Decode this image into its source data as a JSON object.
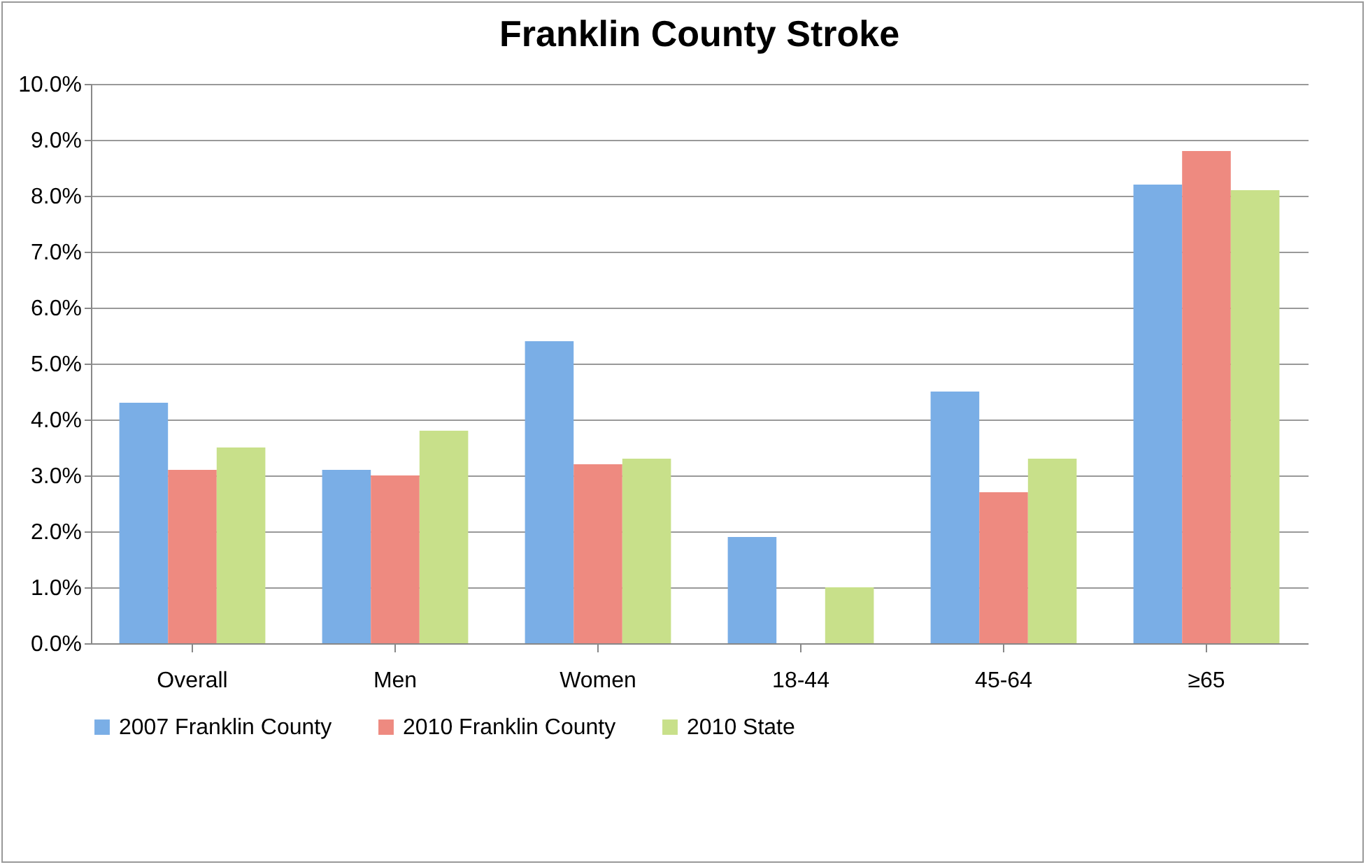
{
  "chart_data": {
    "type": "bar",
    "title": "Franklin County Stroke",
    "categories": [
      "Overall",
      "Men",
      "Women",
      "18-44",
      "45-64",
      "≥65"
    ],
    "series": [
      {
        "name": "2007 Franklin County",
        "color": "#7aaee6",
        "values": [
          4.3,
          3.1,
          5.4,
          1.9,
          4.5,
          8.2
        ]
      },
      {
        "name": "2010 Franklin County",
        "color": "#ee8a80",
        "values": [
          3.1,
          3.0,
          3.2,
          null,
          2.7,
          8.8
        ]
      },
      {
        "name": "2010 State",
        "color": "#c8e08a",
        "values": [
          3.5,
          3.8,
          3.3,
          1.0,
          3.3,
          8.1
        ]
      }
    ],
    "ylim": [
      0,
      10
    ],
    "yticks": [
      {
        "value": 0,
        "label": "0.0%"
      },
      {
        "value": 1,
        "label": "1.0%"
      },
      {
        "value": 2,
        "label": "2.0%"
      },
      {
        "value": 3,
        "label": "3.0%"
      },
      {
        "value": 4,
        "label": "4.0%"
      },
      {
        "value": 5,
        "label": "5.0%"
      },
      {
        "value": 6,
        "label": "6.0%"
      },
      {
        "value": 7,
        "label": "7.0%"
      },
      {
        "value": 8,
        "label": "8.0%"
      },
      {
        "value": 9,
        "label": "9.0%"
      },
      {
        "value": 10,
        "label": "10.0%"
      }
    ],
    "grid": "y",
    "legend": "bottom"
  }
}
